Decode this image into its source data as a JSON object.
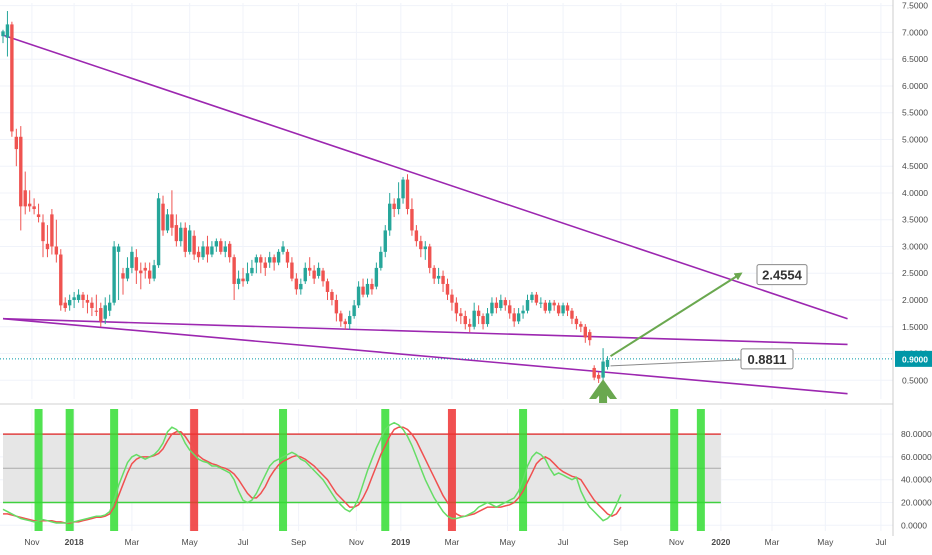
{
  "colors": {
    "up": "#26a69a",
    "down": "#ef5350",
    "trendline": "#9c27b0",
    "arrow": "#6aa84f",
    "grid": "#f0f3fa",
    "axis_text": "#4a4a4a",
    "price_tag_bg": "#0097a7",
    "stoch_k": "#66dd66",
    "stoch_d": "#f05050",
    "band": "#e6e6e6",
    "overbought": "#e04040",
    "oversold": "#40d040",
    "highlight_green": "#33dd33",
    "highlight_red": "#ee3333"
  },
  "chart_data": [
    {
      "type": "candlestick",
      "y_axis": {
        "ticks": [
          "0.5000",
          "1.0000",
          "1.5000",
          "2.0000",
          "2.5000",
          "3.0000",
          "3.5000",
          "4.0000",
          "4.5000",
          "5.0000",
          "5.5000",
          "6.0000",
          "6.5000",
          "7.0000",
          "7.5000"
        ],
        "ylim": [
          0.15,
          7.55
        ]
      },
      "x_axis": {
        "ticks": [
          "Nov",
          "2018",
          "Mar",
          "May",
          "Jul",
          "Sep",
          "Nov",
          "2019",
          "Mar",
          "May",
          "Jul",
          "Sep",
          "Nov",
          "2020",
          "Mar",
          "May",
          "Jul"
        ]
      },
      "candles": [
        [
          6.93,
          7.02,
          6.8,
          7.05
        ],
        [
          6.9,
          7.15,
          6.55,
          7.4
        ],
        [
          7.15,
          5.15,
          5.05,
          7.2
        ],
        [
          5.05,
          4.82,
          4.5,
          5.2
        ],
        [
          5.05,
          3.75,
          3.3,
          5.25
        ],
        [
          4.05,
          3.75,
          3.6,
          4.4
        ],
        [
          3.8,
          3.75,
          3.65,
          4.05
        ],
        [
          3.75,
          3.7,
          3.6,
          3.9
        ],
        [
          3.6,
          3.55,
          3.45,
          3.8
        ],
        [
          3.45,
          3.1,
          2.8,
          3.6
        ],
        [
          3.05,
          2.95,
          2.8,
          3.4
        ],
        [
          3.6,
          3.0,
          2.85,
          3.7
        ],
        [
          3.0,
          2.85,
          2.7,
          3.5
        ],
        [
          2.85,
          1.9,
          1.8,
          2.95
        ],
        [
          1.95,
          1.85,
          1.78,
          2.05
        ],
        [
          1.9,
          2.0,
          1.8,
          2.1
        ],
        [
          2.0,
          2.05,
          1.85,
          2.15
        ],
        [
          2.0,
          2.1,
          1.95,
          2.2
        ],
        [
          2.1,
          2.0,
          1.85,
          2.15
        ],
        [
          2.0,
          1.95,
          1.75,
          2.1
        ],
        [
          1.95,
          1.85,
          1.7,
          2.05
        ],
        [
          1.8,
          1.78,
          1.7,
          2.1
        ],
        [
          1.85,
          1.6,
          1.5,
          1.95
        ],
        [
          1.65,
          1.9,
          1.55,
          2.05
        ],
        [
          1.8,
          1.95,
          1.7,
          2.1
        ],
        [
          1.95,
          3.0,
          1.9,
          3.1
        ],
        [
          2.9,
          3.0,
          2.0,
          3.05
        ],
        [
          2.5,
          2.4,
          2.1,
          2.6
        ],
        [
          2.4,
          2.6,
          2.35,
          2.8
        ],
        [
          2.6,
          2.9,
          2.5,
          3.0
        ],
        [
          2.8,
          2.55,
          2.3,
          2.95
        ],
        [
          2.55,
          2.5,
          2.2,
          2.7
        ],
        [
          2.6,
          2.55,
          2.4,
          2.7
        ],
        [
          2.55,
          2.4,
          2.3,
          2.7
        ],
        [
          2.4,
          2.65,
          2.35,
          2.75
        ],
        [
          2.65,
          3.9,
          2.6,
          4.0
        ],
        [
          3.8,
          3.3,
          3.2,
          3.95
        ],
        [
          3.3,
          3.6,
          3.25,
          3.7
        ],
        [
          3.6,
          3.35,
          3.2,
          4.05
        ],
        [
          3.4,
          3.1,
          3.0,
          3.6
        ],
        [
          3.1,
          3.35,
          3.0,
          3.45
        ],
        [
          3.35,
          2.9,
          2.8,
          3.45
        ],
        [
          2.9,
          3.3,
          2.85,
          3.4
        ],
        [
          3.2,
          2.85,
          2.75,
          3.3
        ],
        [
          2.9,
          2.8,
          2.7,
          3.0
        ],
        [
          2.8,
          3.0,
          2.75,
          3.1
        ],
        [
          3.0,
          2.85,
          2.7,
          3.2
        ],
        [
          2.85,
          3.0,
          2.8,
          3.1
        ],
        [
          3.0,
          3.1,
          2.9,
          3.15
        ],
        [
          3.1,
          2.9,
          2.85,
          3.15
        ],
        [
          2.9,
          3.0,
          2.8,
          3.1
        ],
        [
          3.05,
          2.8,
          2.7,
          3.1
        ],
        [
          2.8,
          2.3,
          2.0,
          2.85
        ],
        [
          2.3,
          2.4,
          2.2,
          2.55
        ],
        [
          2.4,
          2.35,
          2.25,
          2.6
        ],
        [
          2.35,
          2.5,
          2.3,
          2.7
        ],
        [
          2.5,
          2.6,
          2.45,
          2.75
        ],
        [
          2.7,
          2.8,
          2.5,
          2.85
        ],
        [
          2.8,
          2.7,
          2.5,
          2.85
        ],
        [
          2.7,
          2.6,
          2.45,
          2.8
        ],
        [
          2.7,
          2.8,
          2.6,
          2.9
        ],
        [
          2.8,
          2.7,
          2.55,
          2.85
        ],
        [
          2.7,
          2.9,
          2.65,
          2.95
        ],
        [
          2.9,
          3.0,
          2.85,
          3.1
        ],
        [
          2.9,
          2.7,
          2.6,
          2.95
        ],
        [
          2.7,
          2.4,
          2.35,
          2.8
        ],
        [
          2.4,
          2.2,
          2.1,
          2.5
        ],
        [
          2.2,
          2.3,
          2.1,
          2.4
        ],
        [
          2.35,
          2.6,
          2.3,
          2.7
        ],
        [
          2.6,
          2.55,
          2.45,
          2.8
        ],
        [
          2.55,
          2.4,
          2.3,
          2.65
        ],
        [
          2.45,
          2.6,
          2.4,
          2.7
        ],
        [
          2.55,
          2.35,
          2.25,
          2.6
        ],
        [
          2.35,
          2.15,
          2.0,
          2.4
        ],
        [
          2.15,
          2.0,
          1.9,
          2.2
        ],
        [
          2.0,
          1.75,
          1.6,
          2.1
        ],
        [
          1.75,
          1.6,
          1.5,
          1.8
        ],
        [
          1.6,
          1.55,
          1.45,
          1.65
        ],
        [
          1.55,
          1.7,
          1.45,
          1.8
        ],
        [
          1.7,
          1.9,
          1.65,
          2.0
        ],
        [
          1.9,
          2.25,
          1.85,
          2.35
        ],
        [
          2.25,
          2.1,
          2.05,
          2.4
        ],
        [
          2.1,
          2.3,
          2.05,
          2.4
        ],
        [
          2.3,
          2.2,
          2.1,
          2.4
        ],
        [
          2.25,
          2.6,
          2.2,
          2.7
        ],
        [
          2.6,
          2.9,
          2.55,
          3.0
        ],
        [
          2.9,
          3.3,
          2.8,
          3.4
        ],
        [
          3.3,
          3.8,
          3.2,
          4.0
        ],
        [
          3.8,
          3.7,
          3.55,
          3.9
        ],
        [
          3.7,
          3.9,
          3.6,
          4.2
        ],
        [
          3.9,
          4.25,
          3.8,
          4.3
        ],
        [
          4.25,
          3.7,
          3.6,
          4.35
        ],
        [
          3.7,
          3.3,
          3.2,
          3.9
        ],
        [
          3.3,
          3.1,
          3.0,
          3.4
        ],
        [
          3.1,
          2.95,
          2.8,
          3.2
        ],
        [
          2.95,
          3.0,
          2.75,
          3.1
        ],
        [
          3.0,
          2.6,
          2.5,
          3.05
        ],
        [
          2.6,
          2.4,
          2.3,
          2.65
        ],
        [
          2.4,
          2.45,
          2.3,
          2.6
        ],
        [
          2.45,
          2.3,
          2.15,
          2.55
        ],
        [
          2.3,
          2.1,
          2.0,
          2.4
        ],
        [
          2.1,
          1.95,
          1.8,
          2.2
        ],
        [
          1.95,
          1.75,
          1.6,
          2.05
        ],
        [
          1.75,
          1.7,
          1.55,
          1.85
        ],
        [
          1.7,
          1.55,
          1.45,
          1.8
        ],
        [
          1.55,
          1.5,
          1.4,
          1.65
        ],
        [
          1.5,
          1.8,
          1.45,
          1.95
        ],
        [
          1.8,
          1.7,
          1.55,
          1.9
        ],
        [
          1.7,
          1.55,
          1.45,
          1.75
        ],
        [
          1.55,
          1.75,
          1.5,
          1.85
        ],
        [
          1.75,
          1.95,
          1.7,
          2.05
        ],
        [
          1.95,
          1.85,
          1.75,
          2.05
        ],
        [
          1.85,
          2.0,
          1.8,
          2.1
        ],
        [
          2.0,
          1.9,
          1.8,
          2.05
        ],
        [
          1.9,
          1.75,
          1.65,
          2.0
        ],
        [
          1.75,
          1.6,
          1.5,
          1.85
        ],
        [
          1.6,
          1.75,
          1.55,
          1.85
        ],
        [
          1.75,
          1.8,
          1.65,
          1.9
        ],
        [
          1.8,
          2.0,
          1.75,
          2.1
        ],
        [
          2.0,
          2.1,
          1.95,
          2.15
        ],
        [
          2.1,
          1.95,
          1.9,
          2.15
        ],
        [
          1.95,
          1.95,
          1.85,
          2.05
        ],
        [
          1.95,
          1.8,
          1.75,
          2.0
        ],
        [
          1.8,
          1.95,
          1.75,
          2.0
        ],
        [
          1.95,
          1.9,
          1.8,
          2.0
        ],
        [
          1.9,
          1.75,
          1.7,
          1.95
        ],
        [
          1.75,
          1.9,
          1.7,
          1.95
        ],
        [
          1.9,
          1.8,
          1.7,
          1.95
        ],
        [
          1.8,
          1.65,
          1.55,
          1.85
        ],
        [
          1.65,
          1.55,
          1.45,
          1.7
        ],
        [
          1.55,
          1.5,
          1.4,
          1.6
        ],
        [
          1.5,
          1.3,
          1.2,
          1.55
        ],
        [
          1.4,
          1.25,
          1.15,
          1.45
        ],
        [
          0.73,
          0.55,
          0.5,
          0.78
        ],
        [
          0.6,
          0.53,
          0.45,
          0.65
        ],
        [
          0.55,
          0.85,
          0.5,
          1.1
        ],
        [
          0.75,
          0.88,
          0.7,
          0.95
        ]
      ],
      "trendlines": [
        {
          "from": {
            "t": 0,
            "price": 6.95
          },
          "to": {
            "t": 190,
            "price": 1.65
          }
        },
        {
          "from": {
            "t": 0,
            "price": 1.65
          },
          "to": {
            "t": 190,
            "price": 1.17
          }
        },
        {
          "from": {
            "t": 0,
            "price": 1.65
          },
          "to": {
            "t": 190,
            "price": 0.25
          }
        }
      ],
      "annotations": [
        {
          "text": "0.8811",
          "price": 0.88
        },
        {
          "text": "2.4554",
          "price": 2.4554
        }
      ],
      "current_price_label": "0.9000",
      "current_price": 0.9
    },
    {
      "type": "line",
      "name": "",
      "y_axis": {
        "ticks": [
          "0.0000",
          "20.0000",
          "40.0000",
          "60.0000",
          "80.0000"
        ],
        "ylim": [
          -5,
          102
        ]
      },
      "levels": {
        "overbought": 80,
        "middle": 50,
        "oversold": 20
      },
      "series": [
        {
          "key": "k",
          "values": [
            14,
            12,
            10,
            8,
            6,
            5,
            4,
            3,
            4,
            5,
            4,
            3,
            2,
            2,
            2,
            3,
            3,
            4,
            5,
            6,
            7,
            8,
            8,
            9,
            12,
            22,
            35,
            45,
            55,
            60,
            62,
            60,
            58,
            60,
            62,
            66,
            72,
            82,
            86,
            84,
            80,
            72,
            66,
            62,
            58,
            56,
            55,
            52,
            52,
            50,
            48,
            46,
            40,
            30,
            22,
            20,
            22,
            28,
            36,
            44,
            52,
            56,
            58,
            60,
            62,
            64,
            62,
            58,
            56,
            52,
            48,
            44,
            40,
            34,
            28,
            22,
            18,
            14,
            12,
            16,
            24,
            36,
            48,
            58,
            68,
            76,
            84,
            88,
            90,
            88,
            84,
            78,
            70,
            60,
            50,
            40,
            32,
            24,
            18,
            12,
            8,
            6,
            6,
            7,
            8,
            10,
            12,
            16,
            18,
            20,
            18,
            16,
            18,
            20,
            22,
            24,
            30,
            40,
            52,
            60,
            64,
            62,
            58,
            50,
            44,
            46,
            44,
            42,
            40,
            42,
            30,
            22,
            16,
            12,
            8,
            4,
            6,
            10,
            18,
            27
          ]
        },
        {
          "key": "d",
          "values": [
            10,
            10,
            9,
            8,
            7,
            6,
            5,
            4,
            4,
            4,
            4,
            4,
            3,
            3,
            2,
            2,
            3,
            3,
            4,
            5,
            6,
            7,
            7,
            8,
            10,
            16,
            26,
            36,
            46,
            54,
            58,
            60,
            60,
            60,
            61,
            63,
            67,
            74,
            80,
            82,
            82,
            78,
            72,
            66,
            61,
            58,
            56,
            54,
            53,
            51,
            50,
            48,
            45,
            40,
            34,
            28,
            24,
            24,
            28,
            34,
            42,
            48,
            53,
            56,
            58,
            60,
            61,
            60,
            58,
            55,
            52,
            48,
            44,
            40,
            34,
            28,
            24,
            20,
            16,
            16,
            18,
            24,
            32,
            42,
            52,
            62,
            70,
            78,
            84,
            86,
            86,
            84,
            80,
            74,
            66,
            58,
            50,
            42,
            34,
            26,
            20,
            14,
            10,
            8,
            8,
            9,
            10,
            12,
            14,
            16,
            16,
            16,
            16,
            17,
            18,
            20,
            24,
            30,
            38,
            46,
            54,
            58,
            60,
            58,
            54,
            50,
            47,
            45,
            43,
            42,
            40,
            34,
            28,
            22,
            18,
            14,
            10,
            8,
            10,
            16
          ]
        }
      ],
      "highlight_bars": [
        {
          "t": 8,
          "color": "green"
        },
        {
          "t": 15,
          "color": "green"
        },
        {
          "t": 25,
          "color": "green"
        },
        {
          "t": 43,
          "color": "red"
        },
        {
          "t": 63,
          "color": "green"
        },
        {
          "t": 86,
          "color": "green"
        },
        {
          "t": 101,
          "color": "red"
        },
        {
          "t": 117,
          "color": "green"
        },
        {
          "t": 151,
          "color": "green"
        },
        {
          "t": 157,
          "color": "green"
        }
      ]
    }
  ]
}
